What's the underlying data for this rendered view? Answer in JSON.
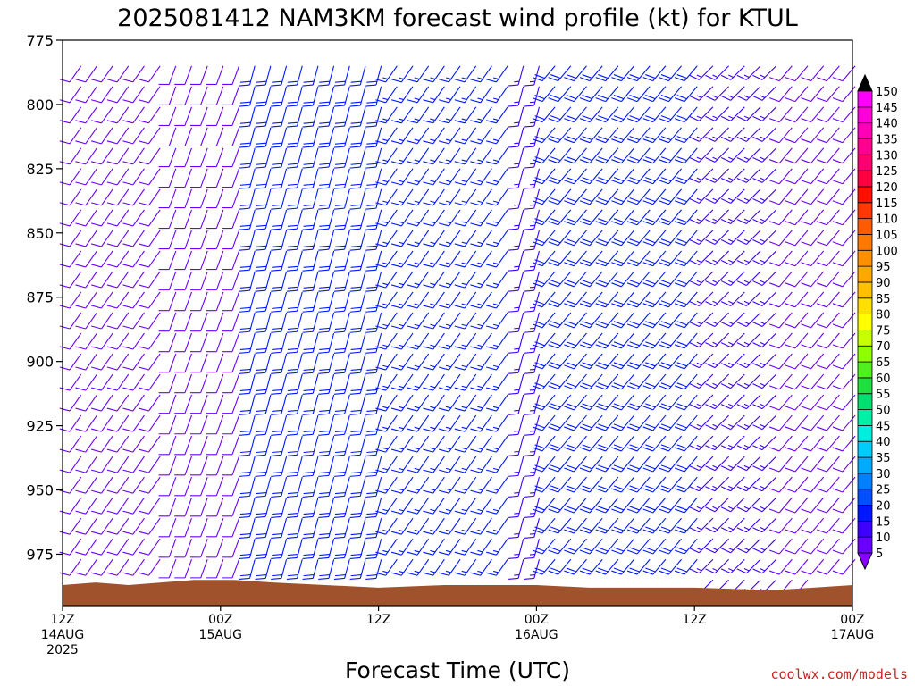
{
  "chart_data": {
    "type": "wind barb profile",
    "title": "2025081412 NAM3KM forecast wind profile (kt) for KTUL",
    "xlabel": "Forecast Time (UTC)",
    "ylabel": "",
    "credit": "coolwx.com/models",
    "xlim_hours": [
      0,
      60
    ],
    "ylim": [
      775,
      995
    ],
    "y_ticks": [
      775,
      800,
      825,
      850,
      875,
      900,
      925,
      950,
      975
    ],
    "x_ticks": [
      {
        "hour": 0,
        "lines": [
          "12Z",
          "14AUG",
          "2025"
        ]
      },
      {
        "hour": 12,
        "lines": [
          "00Z",
          "15AUG"
        ]
      },
      {
        "hour": 24,
        "lines": [
          "12Z"
        ]
      },
      {
        "hour": 36,
        "lines": [
          "00Z",
          "16AUG"
        ]
      },
      {
        "hour": 48,
        "lines": [
          "12Z"
        ]
      },
      {
        "hour": 60,
        "lines": [
          "00Z",
          "17AUG"
        ]
      }
    ],
    "colorbar": {
      "levels": [
        5,
        10,
        15,
        20,
        25,
        30,
        35,
        40,
        45,
        50,
        55,
        60,
        65,
        70,
        75,
        80,
        85,
        90,
        95,
        100,
        105,
        110,
        115,
        120,
        125,
        130,
        135,
        140,
        145,
        150
      ],
      "colors": [
        "#8a00ff",
        "#6a00ff",
        "#3c00ff",
        "#0018ff",
        "#0050ff",
        "#0080ff",
        "#00aaff",
        "#00ccff",
        "#00eedd",
        "#00f0a8",
        "#00e070",
        "#20e040",
        "#50f020",
        "#90ff00",
        "#c8ff00",
        "#ffff00",
        "#ffe000",
        "#ffc000",
        "#ffa800",
        "#ff9000",
        "#ff7800",
        "#ff5c00",
        "#ff3800",
        "#ff1000",
        "#ff0040",
        "#ff0070",
        "#ff0090",
        "#ff00b8",
        "#ff00d8",
        "#ff00ff"
      ]
    },
    "wind_bands": [
      {
        "hours": [
          0,
          8
        ],
        "dir_deg": 215,
        "speed_kt": 9
      },
      {
        "hours": [
          8,
          13.5
        ],
        "dir_deg": 200,
        "speed_kt": 9
      },
      {
        "hours": [
          13.5,
          24
        ],
        "dir_deg": 195,
        "speed_kt": 18
      },
      {
        "hours": [
          24,
          34
        ],
        "dir_deg": 215,
        "speed_kt": 17
      },
      {
        "hours": [
          34,
          36
        ],
        "dir_deg": 195,
        "speed_kt": 15
      },
      {
        "hours": [
          36,
          48
        ],
        "dir_deg": 220,
        "speed_kt": 19
      },
      {
        "hours": [
          48,
          55
        ],
        "dir_deg": 225,
        "speed_kt": 15
      },
      {
        "hours": [
          55,
          60
        ],
        "dir_deg": 220,
        "speed_kt": 8
      }
    ],
    "surface_pressure": [
      {
        "hour": 0,
        "p": 987
      },
      {
        "hour": 2.5,
        "p": 986
      },
      {
        "hour": 5,
        "p": 987
      },
      {
        "hour": 7.5,
        "p": 986
      },
      {
        "hour": 10,
        "p": 985
      },
      {
        "hour": 13,
        "p": 985
      },
      {
        "hour": 16,
        "p": 986
      },
      {
        "hour": 24,
        "p": 988
      },
      {
        "hour": 29,
        "p": 987
      },
      {
        "hour": 36,
        "p": 987
      },
      {
        "hour": 40,
        "p": 988
      },
      {
        "hour": 48,
        "p": 988
      },
      {
        "hour": 54,
        "p": 989
      },
      {
        "hour": 57,
        "p": 988
      },
      {
        "hour": 60,
        "p": 987
      }
    ],
    "ground_color": "#a0522d"
  }
}
